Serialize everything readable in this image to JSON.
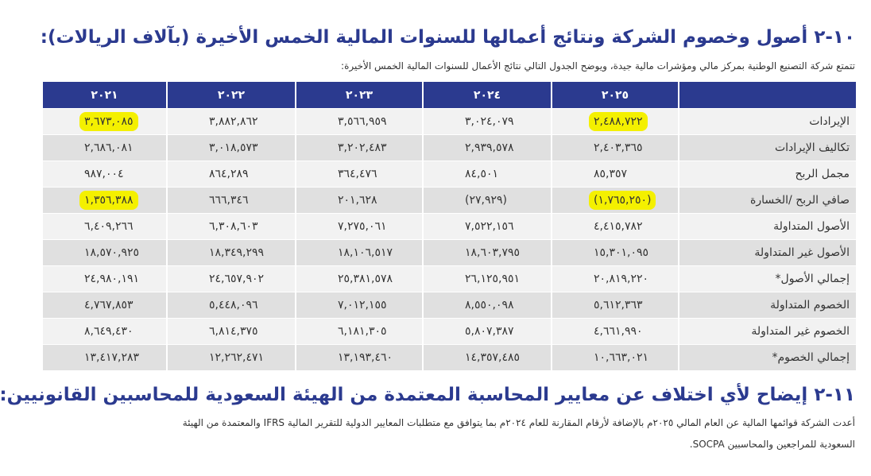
{
  "section1": {
    "number": "١٠-٢",
    "title": "أصول وخصوم الشركة ونتائج أعمالها للسنوات المالية الخمس الأخيرة (بآلاف الريالات):",
    "intro": "تتمتع شركة التصنيع الوطنية بمركز مالي ومؤشرات مالية جيدة، ويوضح الجدول التالي نتائج الأعمال للسنوات المالية الخمس الأخيرة:"
  },
  "table": {
    "years": [
      "٢٠٢٥",
      "٢٠٢٤",
      "٢٠٢٣",
      "٢٠٢٢",
      "٢٠٢١"
    ],
    "rows": [
      {
        "label": "الإيرادات",
        "values": [
          "٢,٤٨٨,٧٢٢",
          "٣,٠٢٤,٠٧٩",
          "٣,٥٦٦,٩٥٩",
          "٣,٨٨٢,٨٦٢",
          "٣,٦٧٣,٠٨٥"
        ]
      },
      {
        "label": "تكاليف الإيرادات",
        "values": [
          "٢,٤٠٣,٣٦٥",
          "٢,٩٣٩,٥٧٨",
          "٣,٢٠٢,٤٨٣",
          "٣,٠١٨,٥٧٣",
          "٢,٦٨٦,٠٨١"
        ]
      },
      {
        "label": "مجمل الربح",
        "values": [
          "٨٥,٣٥٧",
          "٨٤,٥٠١",
          "٣٦٤,٤٧٦",
          "٨٦٤,٢٨٩",
          "٩٨٧,٠٠٤"
        ]
      },
      {
        "label": "صافي الربح /الخسارة",
        "values": [
          "(١,٧٦٥,٢٥٠)",
          "(٢٧,٩٢٩)",
          "٢٠١,٦٢٨",
          "٦٦٦,٣٤٦",
          "١,٣٥٦,٣٨٨"
        ]
      },
      {
        "label": "الأصول المتداولة",
        "values": [
          "٤,٤١٥,٧٨٢",
          "٧,٥٢٢,١٥٦",
          "٧,٢٧٥,٠٦١",
          "٦,٣٠٨,٦٠٣",
          "٦,٤٠٩,٢٦٦"
        ]
      },
      {
        "label": "الأصول غير المتداولة",
        "values": [
          "١٥,٣٠١,٠٩٥",
          "١٨,٦٠٣,٧٩٥",
          "١٨,١٠٦,٥١٧",
          "١٨,٣٤٩,٢٩٩",
          "١٨,٥٧٠,٩٢٥"
        ]
      },
      {
        "label": "إجمالي الأصول*",
        "values": [
          "٢٠,٨١٩,٢٢٠",
          "٢٦,١٢٥,٩٥١",
          "٢٥,٣٨١,٥٧٨",
          "٢٤,٦٥٧,٩٠٢",
          "٢٤,٩٨٠,١٩١"
        ]
      },
      {
        "label": "الخصوم المتداولة",
        "values": [
          "٥,٦١٢,٣٦٣",
          "٨,٥٥٠,٠٩٨",
          "٧,٠١٢,١٥٥",
          "٥,٤٤٨,٠٩٦",
          "٤,٧٦٧,٨٥٣"
        ]
      },
      {
        "label": "الخصوم غير المتداولة",
        "values": [
          "٤,٦٦١,٩٩٠",
          "٥,٨٠٧,٣٨٧",
          "٦,١٨١,٣٠٥",
          "٦,٨١٤,٣٧٥",
          "٨,٦٤٩,٤٣٠"
        ]
      },
      {
        "label": "إجمالي الخصوم*",
        "values": [
          "١٠,٦٦٣,٠٢١",
          "١٤,٣٥٧,٤٨٥",
          "١٣,١٩٣,٤٦٠",
          "١٢,٢٦٢,٤٧١",
          "١٣,٤١٧,٢٨٣"
        ]
      }
    ],
    "highlight_color": "#f4f000",
    "header_color": "#2b3a8f"
  },
  "section2": {
    "number": "١١-٢",
    "title": "إيضاح لأي اختلاف عن معايير المحاسبة المعتمدة من الهيئة السعودية للمحاسبين القانونيين:",
    "para_line1": "أعدت الشركة قوائمها المالية عن العام المالي ٢٠٢٥م بالإضافة لأرقام المقارنة للعام ٢٠٢٤م بما يتوافق مع متطلبات المعايير الدولية للتقرير المالية  IFRS والمعتمدة من الهيئة",
    "para_line2": "السعودية للمراجعين والمحاسبين SOCPA."
  }
}
